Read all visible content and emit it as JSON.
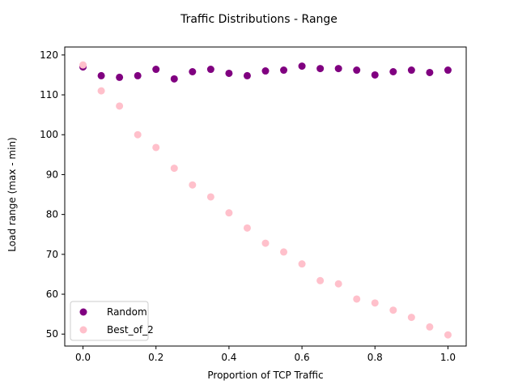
{
  "chart_data": {
    "type": "scatter",
    "title": "Traffic Distributions - Range",
    "xlabel": "Proportion of TCP Traffic",
    "ylabel": "Load range (max - min)",
    "xlim": [
      -0.05,
      1.05
    ],
    "ylim": [
      47,
      122
    ],
    "xticks": [
      0.0,
      0.2,
      0.4,
      0.6,
      0.8,
      1.0
    ],
    "xtick_labels": [
      "0.0",
      "0.2",
      "0.4",
      "0.6",
      "0.8",
      "1.0"
    ],
    "yticks": [
      50,
      60,
      70,
      80,
      90,
      100,
      110,
      120
    ],
    "ytick_labels": [
      "50",
      "60",
      "70",
      "80",
      "90",
      "100",
      "110",
      "120"
    ],
    "grid": false,
    "legend_position": "lower-left",
    "x": [
      0.0,
      0.05,
      0.1,
      0.15,
      0.2,
      0.25,
      0.3,
      0.35,
      0.4,
      0.45,
      0.5,
      0.55,
      0.6,
      0.65,
      0.7,
      0.75,
      0.8,
      0.85,
      0.9,
      0.95,
      1.0
    ],
    "series": [
      {
        "name": "Random",
        "color": "#800080",
        "values": [
          117.0,
          114.8,
          114.4,
          114.8,
          116.4,
          114.0,
          115.8,
          116.4,
          115.4,
          114.8,
          116.0,
          116.2,
          117.2,
          116.6,
          116.6,
          116.2,
          115.0,
          115.8,
          116.2,
          115.6,
          116.2
        ]
      },
      {
        "name": "Best_of_2",
        "color": "#ffc0cb",
        "values": [
          117.5,
          111.0,
          107.2,
          100.0,
          96.8,
          91.6,
          87.4,
          84.4,
          80.4,
          76.6,
          72.8,
          70.6,
          67.6,
          63.4,
          62.6,
          58.8,
          57.8,
          56.0,
          54.2,
          51.8,
          49.8
        ]
      }
    ]
  }
}
